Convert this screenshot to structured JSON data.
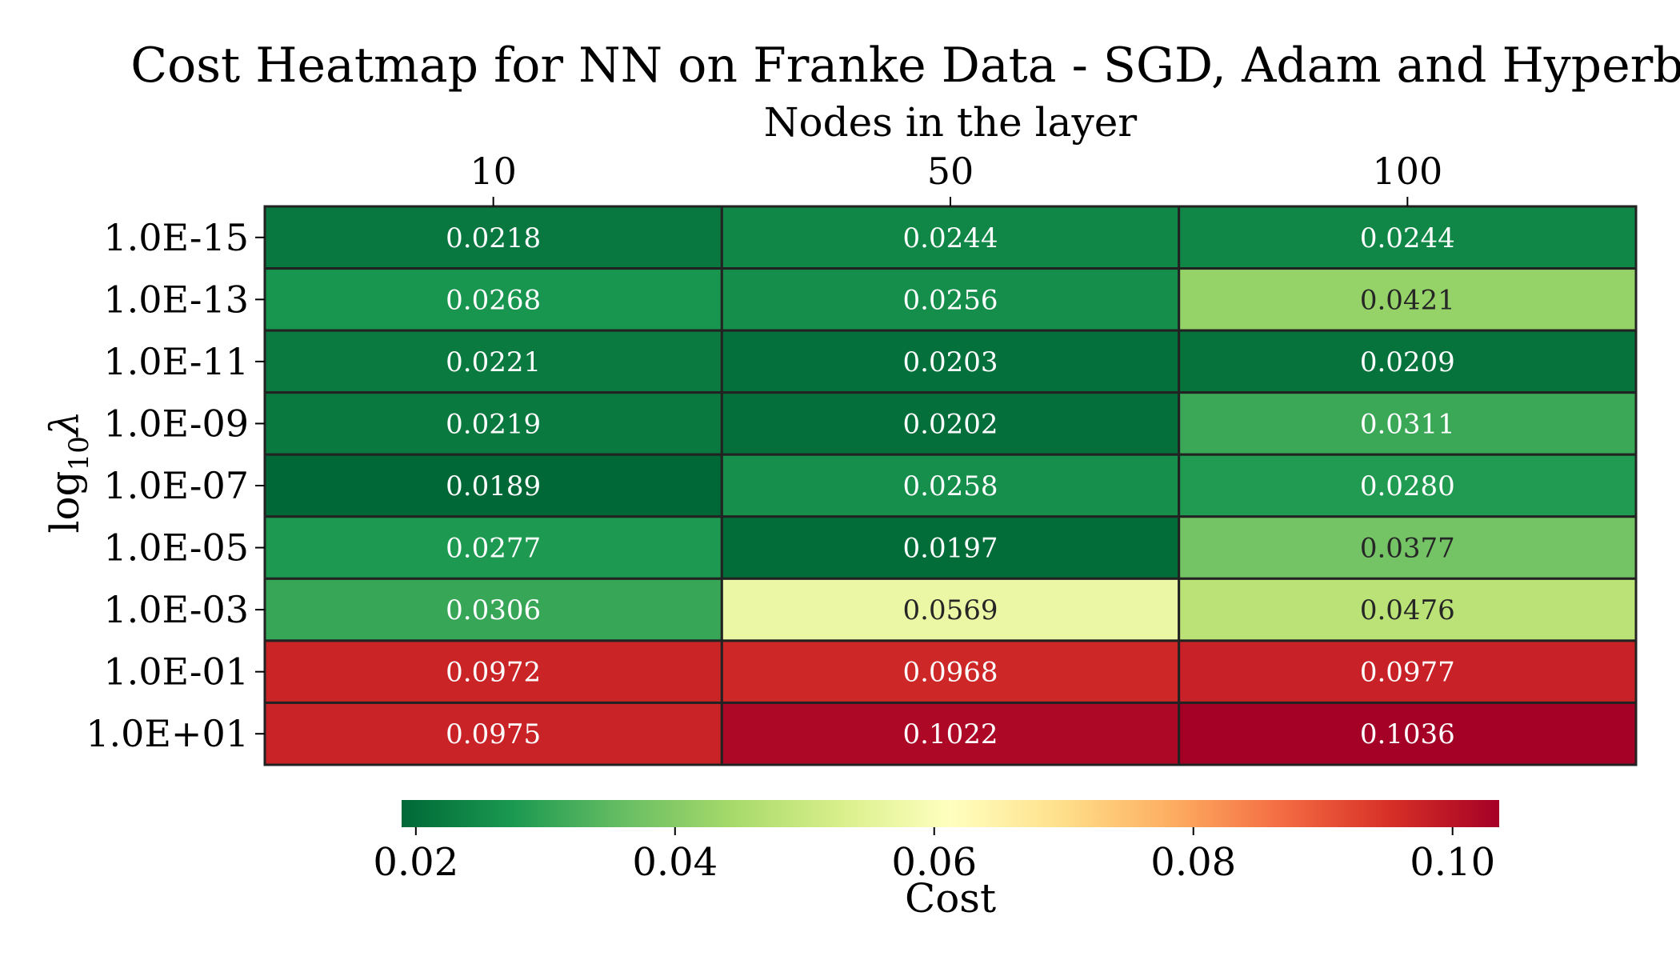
{
  "chart_data": {
    "type": "heatmap",
    "title": "Cost Heatmap for NN on Franke Data - SGD, Adam and Hyperbolic",
    "xlabel": "Nodes in the layer",
    "ylabel": "log",
    "ylabel_subscript": "10",
    "ylabel_symbol": "λ",
    "x_categories": [
      "10",
      "50",
      "100"
    ],
    "y_categories": [
      "1.0E-15",
      "1.0E-13",
      "1.0E-11",
      "1.0E-09",
      "1.0E-07",
      "1.0E-05",
      "1.0E-03",
      "1.0E-01",
      "1.0E+01"
    ],
    "values": [
      [
        0.0218,
        0.0244,
        0.0244
      ],
      [
        0.0268,
        0.0256,
        0.0421
      ],
      [
        0.0221,
        0.0203,
        0.0209
      ],
      [
        0.0219,
        0.0202,
        0.0311
      ],
      [
        0.0189,
        0.0258,
        0.028
      ],
      [
        0.0277,
        0.0197,
        0.0377
      ],
      [
        0.0306,
        0.0569,
        0.0476
      ],
      [
        0.0972,
        0.0968,
        0.0977
      ],
      [
        0.0975,
        0.1022,
        0.1036
      ]
    ],
    "value_labels": [
      [
        "0.0218",
        "0.0244",
        "0.0244"
      ],
      [
        "0.0268",
        "0.0256",
        "0.0421"
      ],
      [
        "0.0221",
        "0.0203",
        "0.0209"
      ],
      [
        "0.0219",
        "0.0202",
        "0.0311"
      ],
      [
        "0.0189",
        "0.0258",
        "0.0280"
      ],
      [
        "0.0277",
        "0.0197",
        "0.0377"
      ],
      [
        "0.0306",
        "0.0569",
        "0.0476"
      ],
      [
        "0.0972",
        "0.0968",
        "0.0977"
      ],
      [
        "0.0975",
        "0.1022",
        "0.1036"
      ]
    ],
    "colormap": "RdYlGn_r",
    "colormap_stops": [
      "#006837",
      "#1a9850",
      "#66bd63",
      "#a6d96a",
      "#d9ef8b",
      "#ffffbf",
      "#fee08b",
      "#fdae61",
      "#f46d43",
      "#d73027",
      "#a50026"
    ],
    "color_range": [
      0.0189,
      0.1036
    ],
    "colorbar": {
      "label": "Cost",
      "orientation": "horizontal",
      "ticks": [
        0.02,
        0.04,
        0.06,
        0.08,
        0.1
      ],
      "tick_labels": [
        "0.02",
        "0.04",
        "0.06",
        "0.08",
        "0.10"
      ]
    },
    "x_axis_position": "top",
    "cell_border_color": "#222222",
    "grid": false
  }
}
